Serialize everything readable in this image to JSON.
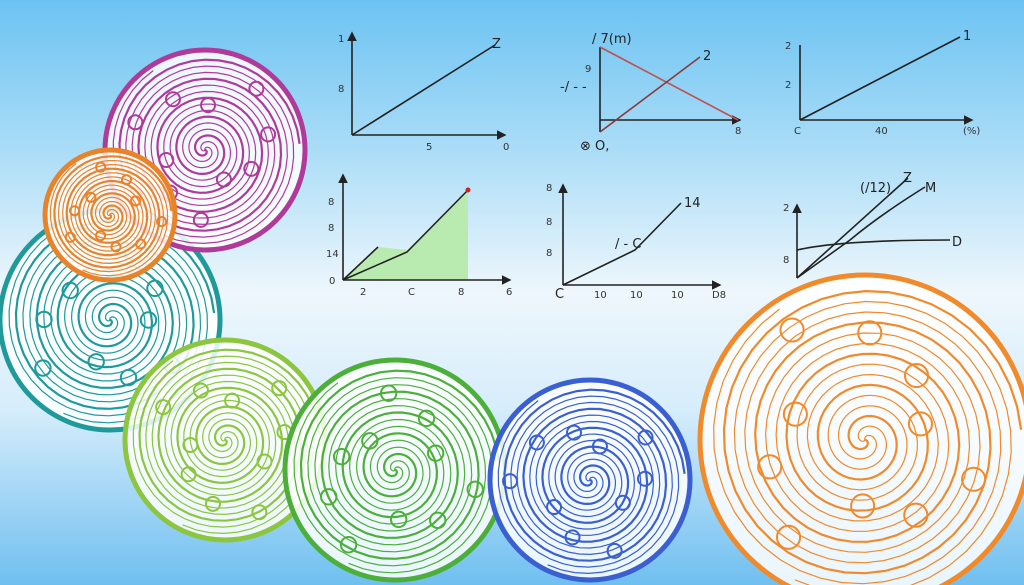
{
  "palette": {
    "background_top": "#6cc3f2",
    "background_mid": "#eef7fc",
    "spirals": [
      "#b03a9a",
      "#e8832a",
      "#1f9a9a",
      "#8cc63f",
      "#4caf3a",
      "#3a5fd0",
      "#f08a2a"
    ],
    "chart_fill": "#b9ebb0",
    "red_line": "#c0504d"
  },
  "charts": [
    {
      "labels": {
        "y_top": "1",
        "y_mid": "8",
        "x_mid": "5",
        "x_end": "0",
        "series": "Z"
      }
    },
    {
      "labels": {
        "title": "/ 7(m)",
        "series": "2",
        "y_mid": "9",
        "y_side": "-/ - -",
        "x_end": "8",
        "origin": "⊗ O,"
      }
    },
    {
      "labels": {
        "y1": "8",
        "y2": "8",
        "y3": "14",
        "y0": "0",
        "x1": "2",
        "x2": "C",
        "x3": "8",
        "x4": "6"
      }
    },
    {
      "labels": {
        "y1": "8",
        "y2": "8",
        "y3": "8",
        "origin": "C",
        "x1": "10",
        "x2": "10",
        "x3": "10",
        "x4": "D8",
        "series": "14",
        "annotation": "/ - C"
      }
    },
    {
      "labels": {
        "y_top": "2",
        "y_mid": "2",
        "origin": "C",
        "x_mid": "40",
        "x_end": "(%)",
        "series": "1"
      }
    },
    {
      "labels": {
        "y_top": "2",
        "y_low": "8",
        "series_a": "(/12)",
        "series_b": "Z",
        "series_c": "M",
        "series_d": "D"
      }
    }
  ]
}
